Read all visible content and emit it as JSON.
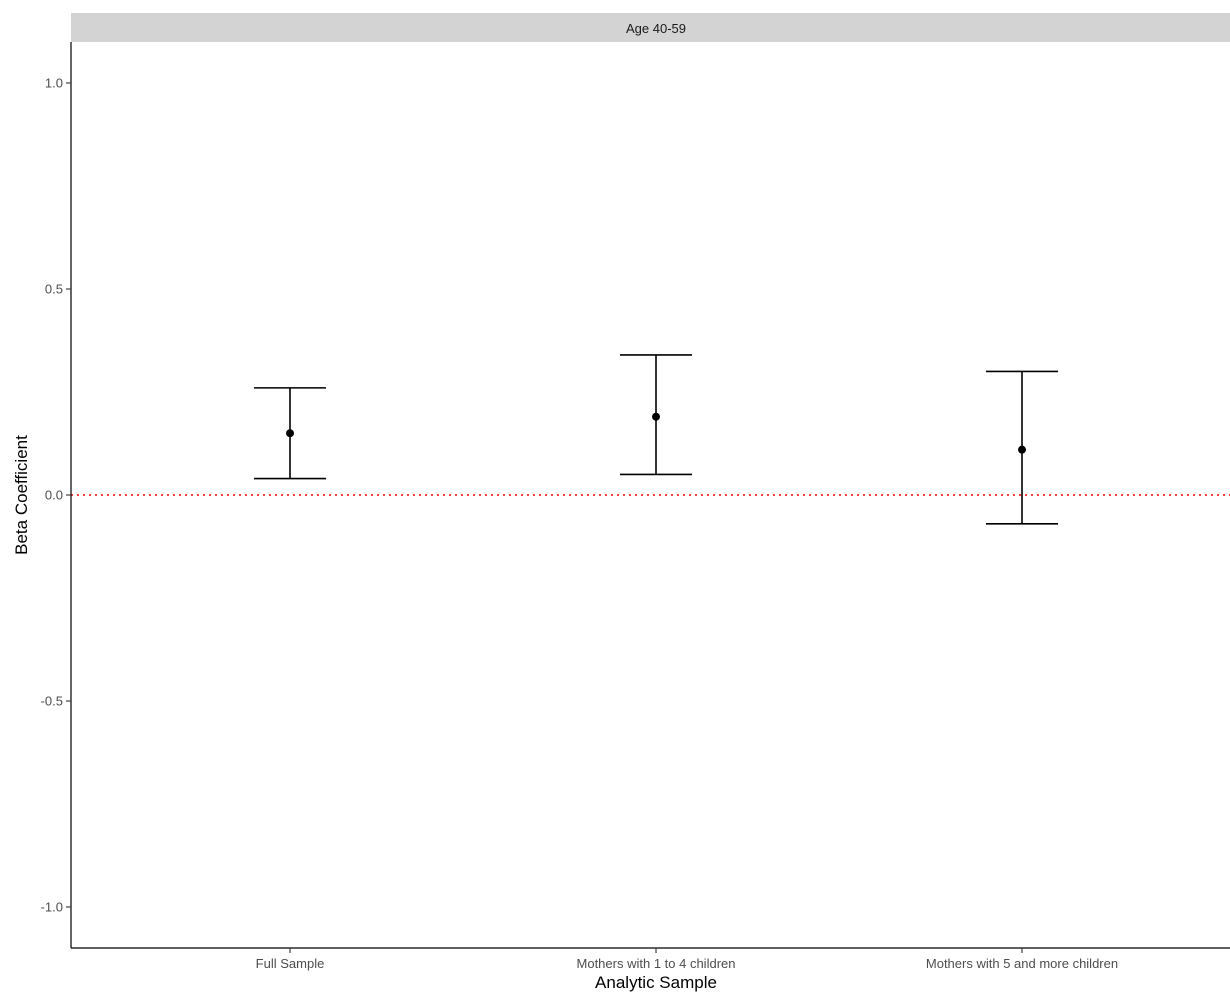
{
  "chart_data": {
    "type": "errorbar",
    "facet_label": "Age 40-59",
    "xlabel": "Analytic Sample",
    "ylabel": "Beta Coefficient",
    "ylim": [
      -1.1,
      1.1
    ],
    "yticks": [
      -1.0,
      -0.5,
      0.0,
      0.5,
      1.0
    ],
    "ytick_labels": [
      "-1.0",
      "-0.5",
      "0.0",
      "0.5",
      "1.0"
    ],
    "categories": [
      "Full Sample",
      "Mothers with 1 to 4 children",
      "Mothers with 5 and more children"
    ],
    "estimates": [
      0.15,
      0.19,
      0.11
    ],
    "ci_lower": [
      0.04,
      0.05,
      -0.07
    ],
    "ci_upper": [
      0.26,
      0.34,
      0.3
    ],
    "reference_line": {
      "y": 0.0,
      "color": "#ff0000",
      "style": "dotted"
    },
    "grid": false,
    "colors": {
      "points": "#000000",
      "errorbars": "#000000",
      "strip": "#d3d3d3"
    }
  }
}
